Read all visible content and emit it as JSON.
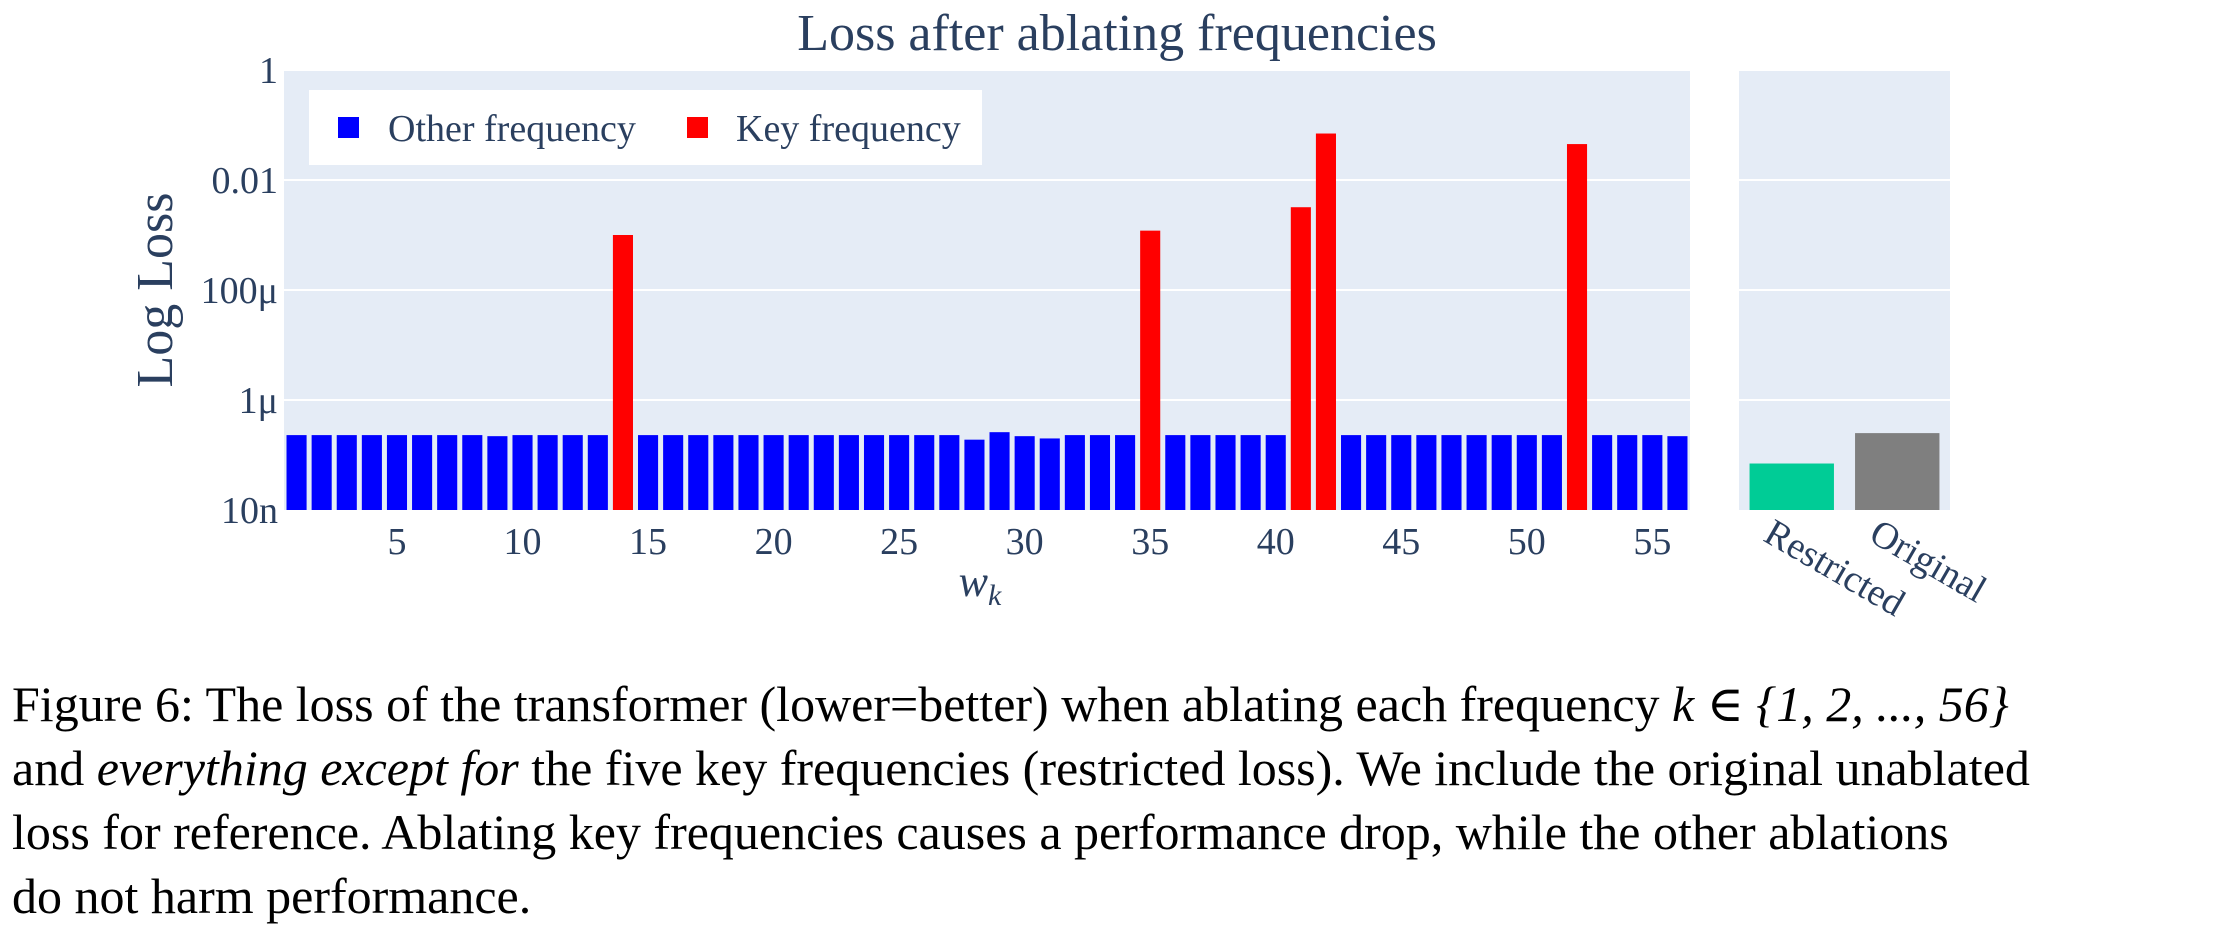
{
  "chart_data": [
    {
      "type": "bar",
      "title": "Loss after ablating frequencies",
      "xlabel": "w_k",
      "ylabel": "Log Loss",
      "yscale": "log",
      "ylim": [
        1e-08,
        1
      ],
      "yticks": [
        1e-08,
        1e-06,
        0.0001,
        0.01,
        1
      ],
      "ytick_labels": [
        "10n",
        "1μ",
        "100μ",
        "0.01",
        "1"
      ],
      "xticks": [
        5,
        10,
        15,
        20,
        25,
        30,
        35,
        40,
        45,
        50,
        55
      ],
      "x": [
        1,
        2,
        3,
        4,
        5,
        6,
        7,
        8,
        9,
        10,
        11,
        12,
        13,
        14,
        15,
        16,
        17,
        18,
        19,
        20,
        21,
        22,
        23,
        24,
        25,
        26,
        27,
        28,
        29,
        30,
        31,
        32,
        33,
        34,
        35,
        36,
        37,
        38,
        39,
        40,
        41,
        42,
        43,
        44,
        45,
        46,
        47,
        48,
        49,
        50,
        51,
        52,
        53,
        54,
        55,
        56
      ],
      "legend": [
        {
          "name": "Other frequency",
          "color": "#0000ff"
        },
        {
          "name": "Key frequency",
          "color": "#ff0000"
        }
      ],
      "legend_position": "top-left",
      "key_frequencies": [
        14,
        35,
        41,
        42,
        52
      ],
      "values": [
        2.3e-07,
        2.3e-07,
        2.3e-07,
        2.3e-07,
        2.3e-07,
        2.3e-07,
        2.3e-07,
        2.3e-07,
        2.2e-07,
        2.3e-07,
        2.3e-07,
        2.3e-07,
        2.3e-07,
        0.001,
        2.3e-07,
        2.3e-07,
        2.3e-07,
        2.3e-07,
        2.3e-07,
        2.3e-07,
        2.3e-07,
        2.3e-07,
        2.3e-07,
        2.3e-07,
        2.3e-07,
        2.3e-07,
        2.3e-07,
        1.9e-07,
        2.6e-07,
        2.2e-07,
        2e-07,
        2.3e-07,
        2.3e-07,
        2.3e-07,
        0.0012,
        2.3e-07,
        2.3e-07,
        2.3e-07,
        2.3e-07,
        2.3e-07,
        0.0032,
        0.07,
        2.3e-07,
        2.3e-07,
        2.3e-07,
        2.3e-07,
        2.3e-07,
        2.3e-07,
        2.3e-07,
        2.3e-07,
        2.3e-07,
        0.045,
        2.3e-07,
        2.3e-07,
        2.3e-07,
        2.2e-07
      ]
    },
    {
      "type": "bar",
      "yscale": "log",
      "ylim": [
        1e-08,
        1
      ],
      "categories": [
        "Restricted",
        "Original"
      ],
      "values": [
        7e-08,
        2.5e-07
      ],
      "colors": [
        "#00cc96",
        "#7f7f7f"
      ]
    }
  ],
  "caption": {
    "line1_prefix": "Figure 6: The loss of the transformer (lower=better) when ablating each frequency ",
    "line1_math": "k ∈ {1, 2, ..., 56}",
    "line2_prefix": "and ",
    "line2_emph": "everything except for",
    "line2_rest": " the five key frequencies (restricted loss). We include the original unablated",
    "line3": "loss for reference.  Ablating key frequencies causes a performance drop, while the other ablations",
    "line4": "do not harm performance."
  },
  "colors": {
    "plot_bg": "#e5ecf6",
    "text": "#2a3f5f",
    "grid": "#ffffff"
  }
}
